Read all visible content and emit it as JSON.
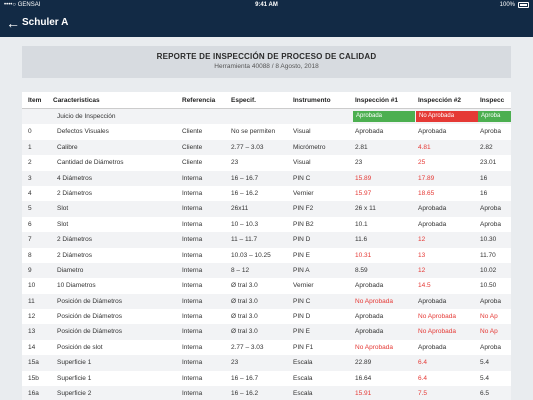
{
  "status_bar": {
    "carrier": "••••○ GENSAI",
    "time": "9:41 AM",
    "battery": "100%"
  },
  "nav": {
    "title": "Schuler A"
  },
  "report": {
    "title": "REPORTE DE INSPECCIÓN DE PROCESO DE CALIDAD",
    "subtitle": "Herramienta 40088 / 8 Agosto, 2018"
  },
  "colors": {
    "green": "#4caf50",
    "red": "#e53935",
    "navy": "#122a45"
  },
  "table": {
    "headers": {
      "item": "Item",
      "caracteristicas": "Caracteristicas",
      "referencia": "Referencia",
      "especif": "Especif.",
      "instrumento": "Instrumento",
      "insp1": "Inspección #1",
      "insp2": "Inspección #2",
      "insp3": "Inspecc"
    },
    "judgment": {
      "label": "Juicio de Inspección",
      "insp1": "Aprobada",
      "insp2": "No Aprobada",
      "insp3": "Aproba"
    },
    "rows": [
      {
        "item": "0",
        "car": "Defectos Visuales",
        "ref": "Cliente",
        "esp": "No se permiten",
        "ins": "Visual",
        "i1": "Aprobada",
        "i2": "Aprobada",
        "i3": "Aproba"
      },
      {
        "item": "1",
        "car": "Calibre",
        "ref": "Cliente",
        "esp": "2.77 – 3.03",
        "ins": "Micrómetro",
        "i1": "2.81",
        "i2": "4.81",
        "i3": "2.82"
      },
      {
        "item": "2",
        "car": "Cantidad de Diámetros",
        "ref": "Cliente",
        "esp": "23",
        "ins": "Visual",
        "i1": "23",
        "i2": "25",
        "i3": "23.01"
      },
      {
        "item": "3",
        "car": "4 Diámetros",
        "ref": "Interna",
        "esp": "16 – 16.7",
        "ins": "PIN C",
        "i1": "15.89",
        "i2": "17.89",
        "i3": "16"
      },
      {
        "item": "4",
        "car": "2 Diámetros",
        "ref": "Interna",
        "esp": "16 – 16.2",
        "ins": "Vernier",
        "i1": "15.97",
        "i2": "18.65",
        "i3": "16"
      },
      {
        "item": "5",
        "car": "Slot",
        "ref": "Interna",
        "esp": "26x11",
        "ins": "PIN F2",
        "i1": "26 x 11",
        "i2": "Aprobada",
        "i3": "Aproba"
      },
      {
        "item": "6",
        "car": "Slot",
        "ref": "Interna",
        "esp": "10 – 10.3",
        "ins": "PIN B2",
        "i1": "10.1",
        "i2": "Aprobada",
        "i3": "Aproba"
      },
      {
        "item": "7",
        "car": "2 Diámetros",
        "ref": "Interna",
        "esp": "11 – 11.7",
        "ins": "PIN D",
        "i1": "11.6",
        "i2": "12",
        "i3": "10.30"
      },
      {
        "item": "8",
        "car": "2 Diámetros",
        "ref": "Interna",
        "esp": "10.03 – 10.25",
        "ins": "PIN E",
        "i1": "10.31",
        "i2": "13",
        "i3": "11.70"
      },
      {
        "item": "9",
        "car": "Diametro",
        "ref": "Interna",
        "esp": "8 – 12",
        "ins": "PIN A",
        "i1": "8.59",
        "i2": "12",
        "i3": "10.02"
      },
      {
        "item": "10",
        "car": "10 Diametros",
        "ref": "Interna",
        "esp": "Ø tral 3.0",
        "ins": "Vernier",
        "i1": "Aprobada",
        "i2": "14.5",
        "i3": "10.50"
      },
      {
        "item": "11",
        "car": "Posición de Diámetros",
        "ref": "Interna",
        "esp": "Ø tral 3.0",
        "ins": "PIN C",
        "i1": "No Aprobada",
        "i2": "Aprobada",
        "i3": "Aproba"
      },
      {
        "item": "12",
        "car": "Posición de Diámetros",
        "ref": "Interna",
        "esp": "Ø tral 3.0",
        "ins": "PIN D",
        "i1": "Aprobada",
        "i2": "No Aprobada",
        "i3": "No Ap"
      },
      {
        "item": "13",
        "car": "Posición de Diámetros",
        "ref": "Interna",
        "esp": "Ø tral 3.0",
        "ins": "PIN E",
        "i1": "Aprobada",
        "i2": "No Aprobada",
        "i3": "No Ap"
      },
      {
        "item": "14",
        "car": "Posición de slot",
        "ref": "Interna",
        "esp": "2.77 – 3.03",
        "ins": "PIN F1",
        "i1": "No Aprobada",
        "i2": "Aprobada",
        "i3": "Aproba"
      },
      {
        "item": "15a",
        "car": "Superficie 1",
        "ref": "Interna",
        "esp": "23",
        "ins": "Escala",
        "i1": "22.89",
        "i2": "6.4",
        "i3": "5.4"
      },
      {
        "item": "15b",
        "car": "Superficie 1",
        "ref": "Interna",
        "esp": "16 – 16.7",
        "ins": "Escala",
        "i1": "16.64",
        "i2": "6.4",
        "i3": "5.4"
      },
      {
        "item": "16a",
        "car": "Superficie 2",
        "ref": "Interna",
        "esp": "16 – 16.2",
        "ins": "Escala",
        "i1": "15.91",
        "i2": "7.5",
        "i3": "6.5"
      }
    ],
    "red_cells": [
      [
        1,
        "i2"
      ],
      [
        2,
        "i2"
      ],
      [
        3,
        "i1"
      ],
      [
        3,
        "i2"
      ],
      [
        4,
        "i1"
      ],
      [
        4,
        "i2"
      ],
      [
        7,
        "i2"
      ],
      [
        8,
        "i1"
      ],
      [
        8,
        "i2"
      ],
      [
        9,
        "i2"
      ],
      [
        10,
        "i2"
      ],
      [
        11,
        "i1"
      ],
      [
        12,
        "i2"
      ],
      [
        12,
        "i3"
      ],
      [
        13,
        "i2"
      ],
      [
        13,
        "i3"
      ],
      [
        14,
        "i1"
      ],
      [
        15,
        "i2"
      ],
      [
        16,
        "i2"
      ],
      [
        17,
        "i1"
      ],
      [
        17,
        "i2"
      ]
    ]
  }
}
